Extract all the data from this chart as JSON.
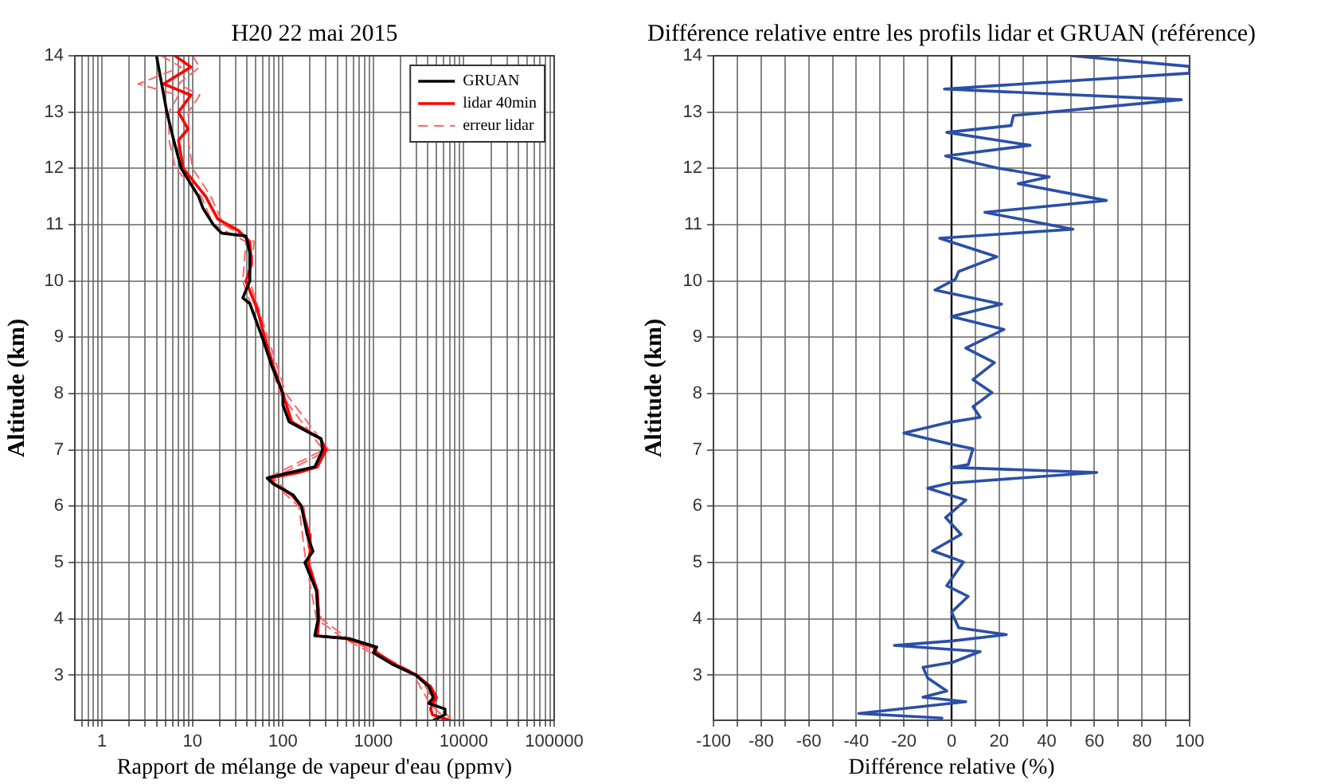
{
  "chart_data": [
    {
      "type": "line",
      "title": "H20 22 mai 2015",
      "xlabel": "Rapport de mélange de vapeur d'eau (ppmv)",
      "ylabel": "Altitude (km)",
      "log": "x",
      "grid": true,
      "legend": "top right",
      "marker": "none",
      "xlim": [
        0.5,
        100000
      ],
      "xticks": [
        {
          "value": 0.6,
          "label": null
        },
        {
          "value": 0.7,
          "label": null
        },
        {
          "value": 0.8,
          "label": null
        },
        {
          "value": 0.9,
          "label": null
        },
        1,
        {
          "value": 2,
          "label": null
        },
        {
          "value": 3,
          "label": null
        },
        {
          "value": 4,
          "label": null
        },
        {
          "value": 5,
          "label": null
        },
        {
          "value": 6,
          "label": null
        },
        {
          "value": 7,
          "label": null
        },
        {
          "value": 8,
          "label": null
        },
        {
          "value": 9,
          "label": null
        },
        10,
        {
          "value": 20,
          "label": null
        },
        {
          "value": 30,
          "label": null
        },
        {
          "value": 40,
          "label": null
        },
        {
          "value": 50,
          "label": null
        },
        {
          "value": 60,
          "label": null
        },
        {
          "value": 70,
          "label": null
        },
        {
          "value": 80,
          "label": null
        },
        {
          "value": 90,
          "label": null
        },
        100,
        {
          "value": 200,
          "label": null
        },
        {
          "value": 300,
          "label": null
        },
        {
          "value": 400,
          "label": null
        },
        {
          "value": 500,
          "label": null
        },
        {
          "value": 600,
          "label": null
        },
        {
          "value": 700,
          "label": null
        },
        {
          "value": 800,
          "label": null
        },
        {
          "value": 900,
          "label": null
        },
        1000,
        {
          "value": 2000,
          "label": null
        },
        {
          "value": 3000,
          "label": null
        },
        {
          "value": 4000,
          "label": null
        },
        {
          "value": 5000,
          "label": null
        },
        {
          "value": 6000,
          "label": null
        },
        {
          "value": 7000,
          "label": null
        },
        {
          "value": 8000,
          "label": null
        },
        {
          "value": 9000,
          "label": null
        },
        10000,
        {
          "value": 20000,
          "label": null
        },
        {
          "value": 30000,
          "label": null
        },
        {
          "value": 40000,
          "label": null
        },
        {
          "value": 50000,
          "label": null
        },
        {
          "value": 60000,
          "label": null
        },
        {
          "value": 70000,
          "label": null
        },
        {
          "value": 80000,
          "label": null
        },
        {
          "value": 90000,
          "label": null
        },
        100000
      ],
      "ylim": [
        2.2,
        14
      ],
      "yticks": [
        3,
        4,
        5,
        6,
        7,
        8,
        9,
        10,
        11,
        12,
        13,
        14
      ],
      "series": [
        {
          "name": "GRUAN",
          "color": "#000000",
          "line_style": "solid",
          "x": [
            4,
            5.2,
            6.2,
            7.5,
            11.7,
            13,
            17,
            21,
            39,
            43,
            43,
            36,
            43,
            59,
            75,
            100,
            100,
            117,
            200,
            265,
            275,
            225,
            120,
            67,
            78,
            130,
            160,
            185,
            215,
            175,
            235,
            245,
            225,
            540,
            1090,
            1000,
            1600,
            2950,
            4100,
            4600,
            4100,
            6200,
            6200,
            4600
          ],
          "values": [
            14,
            13,
            12.5,
            12,
            11.5,
            11.3,
            11,
            10.85,
            10.8,
            10.5,
            10,
            9.7,
            9.6,
            9,
            8.5,
            8,
            7.8,
            7.5,
            7.3,
            7.2,
            7,
            6.7,
            6.6,
            6.5,
            6.4,
            6.2,
            6,
            5.5,
            5.2,
            5,
            4.5,
            4,
            3.7,
            3.65,
            3.5,
            3.4,
            3.2,
            3,
            2.8,
            2.6,
            2.5,
            2.4,
            2.3,
            2.2
          ]
        },
        {
          "name": "lidar 40min",
          "color": "#ff0000",
          "line_style": "solid",
          "x": [
            6.4,
            9.6,
            4.8,
            9.6,
            7,
            8.9,
            7,
            7.9,
            14,
            19,
            32,
            43,
            45,
            39,
            52,
            63,
            78,
            100,
            125,
            260,
            300,
            240,
            150,
            72,
            80,
            125,
            160,
            195,
            200,
            190,
            240,
            250,
            240,
            500,
            1000,
            1100,
            1700,
            3000,
            4300,
            5000,
            4500,
            4300,
            4500,
            7000
          ],
          "values": [
            14,
            13.8,
            13.5,
            13.3,
            13,
            12.7,
            12.5,
            12,
            11.5,
            11.1,
            10.9,
            10.7,
            10.3,
            10,
            9.5,
            9,
            8.5,
            8,
            7.5,
            7.2,
            7,
            6.7,
            6.6,
            6.5,
            6.4,
            6.2,
            6,
            5.5,
            5.2,
            5,
            4.5,
            4,
            3.7,
            3.65,
            3.5,
            3.4,
            3.2,
            3,
            2.8,
            2.6,
            2.5,
            2.4,
            2.3,
            2.2
          ]
        },
        {
          "name": "erreur lidar",
          "color": "#ff6666",
          "line_style": "dashed",
          "x": [
            10,
            12,
            7,
            12,
            9,
            9,
            10,
            16,
            22,
            48,
            43,
            68,
            108,
            320,
            78,
            170,
            200,
            265,
            530,
            3200,
            4800,
            7500
          ],
          "values": [
            14,
            13.8,
            13.5,
            13.3,
            13,
            12.5,
            12,
            11.5,
            11,
            10.7,
            10,
            9,
            8,
            7,
            6.5,
            6,
            5,
            4,
            3.65,
            3,
            2.5,
            2.2
          ]
        },
        {
          "color": "#ff6666",
          "line_style": "dashed",
          "x": [
            4.5,
            7.5,
            2.5,
            7,
            5.5,
            5.5,
            6.5,
            12.5,
            17,
            39,
            36,
            59,
            93,
            280,
            67,
            150,
            180,
            235,
            470,
            2800,
            4200,
            6500
          ],
          "values": [
            14,
            13.8,
            13.5,
            13.3,
            13,
            12.5,
            12,
            11.5,
            11,
            10.7,
            10,
            9,
            8,
            7,
            6.5,
            6,
            5,
            4,
            3.65,
            3,
            2.5,
            2.2
          ]
        }
      ]
    },
    {
      "type": "line",
      "title": "Différence relative entre les profils lidar et GRUAN (référence)",
      "xlabel": "Différence relative (%)",
      "ylabel": "Altitude (km)",
      "grid": true,
      "marker": "none",
      "xlim": [
        -100,
        100
      ],
      "xticks": [
        -100,
        {
          "value": -90,
          "label": null
        },
        -80,
        {
          "value": -70,
          "label": null
        },
        -60,
        {
          "value": -50,
          "label": null
        },
        -40,
        {
          "value": -30,
          "label": null
        },
        -20,
        {
          "value": -10,
          "label": null
        },
        0,
        {
          "value": 10,
          "label": null
        },
        20,
        {
          "value": 30,
          "label": null
        },
        40,
        {
          "value": 50,
          "label": null
        },
        60,
        {
          "value": 70,
          "label": null
        },
        80,
        {
          "value": 90,
          "label": null
        },
        100
      ],
      "ylim": [
        2.2,
        14
      ],
      "yticks": [
        3,
        4,
        5,
        6,
        7,
        8,
        9,
        10,
        11,
        12,
        13,
        14
      ],
      "ref_lines": [
        {
          "axis": "x",
          "value": 0,
          "color": "#000000"
        }
      ],
      "series": [
        {
          "color": "#2a4fa8",
          "line_style": "solid",
          "x": [
            50.7,
            100,
            100,
            -3,
            96.5,
            26,
            25,
            -2,
            33,
            -2.5,
            19,
            41,
            28,
            65,
            14,
            51,
            -5,
            19,
            3,
            1.6,
            -7,
            21,
            0,
            22,
            6,
            18,
            9,
            17,
            9,
            12,
            -1,
            -20,
            -1,
            9,
            7,
            0,
            61,
            -1,
            -10,
            6,
            -2.5,
            4,
            -8,
            5,
            -2,
            7,
            0,
            3,
            23,
            0.5,
            -24,
            12,
            0.5,
            -12,
            -10,
            -2,
            -12,
            6,
            -39,
            -4
          ],
          "values": [
            14,
            13.81,
            13.69,
            13.41,
            13.22,
            12.94,
            12.76,
            12.64,
            12.41,
            12.22,
            12.01,
            11.85,
            11.73,
            11.43,
            11.22,
            10.92,
            10.76,
            10.43,
            10.17,
            10.03,
            9.84,
            9.59,
            9.37,
            9.14,
            8.81,
            8.55,
            8.25,
            8.02,
            7.77,
            7.58,
            7.49,
            7.3,
            7.11,
            7.02,
            6.74,
            6.69,
            6.6,
            6.41,
            6.32,
            6.11,
            5.8,
            5.5,
            5.21,
            5.01,
            4.59,
            4.4,
            4.12,
            3.84,
            3.72,
            3.61,
            3.53,
            3.42,
            3.23,
            3.14,
            2.95,
            2.72,
            2.61,
            2.53,
            2.32,
            2.24
          ]
        }
      ]
    }
  ]
}
